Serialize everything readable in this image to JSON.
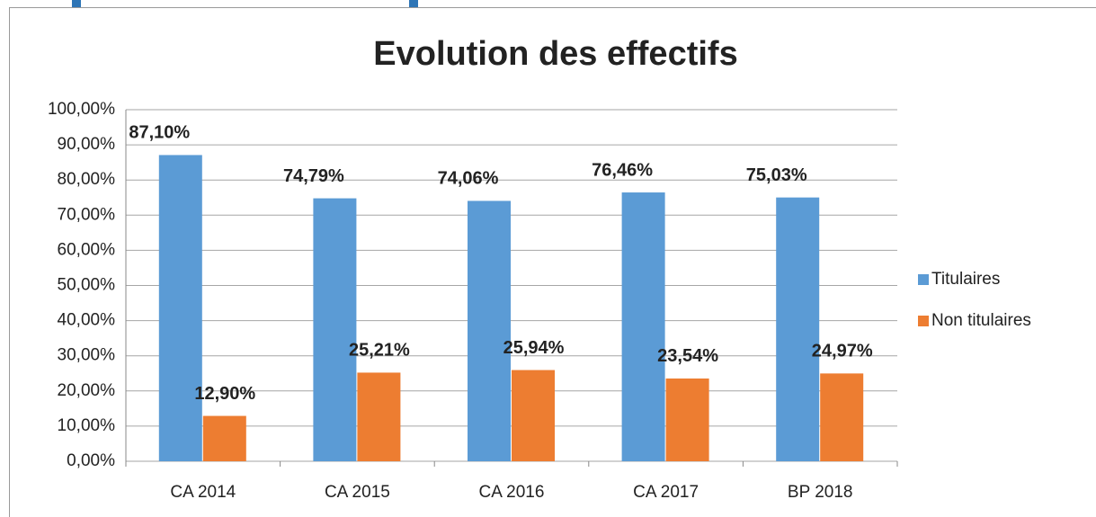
{
  "chart_data": {
    "type": "bar",
    "title": "Evolution des effectifs",
    "categories": [
      "CA 2014",
      "CA 2015",
      "CA 2016",
      "CA 2017",
      "BP 2018"
    ],
    "series": [
      {
        "name": "Titulaires",
        "color": "#5b9bd5",
        "label_color": "#2e75b6",
        "values": [
          87.1,
          74.79,
          74.06,
          76.46,
          75.03
        ],
        "value_labels": [
          "87,10%",
          "74,79%",
          "74,06%",
          "76,46%",
          "75,03%"
        ]
      },
      {
        "name": "Non titulaires",
        "color": "#ed7d31",
        "label_color": "#843c0c",
        "values": [
          12.9,
          25.21,
          25.94,
          23.54,
          24.97
        ],
        "value_labels": [
          "12,90%",
          "25,21%",
          "25,94%",
          "23,54%",
          "24,97%"
        ]
      }
    ],
    "ylim": [
      0,
      100
    ],
    "yticks": [
      {
        "value": 0,
        "label": "0,00%"
      },
      {
        "value": 10,
        "label": "10,00%"
      },
      {
        "value": 20,
        "label": "20,00%"
      },
      {
        "value": 30,
        "label": "30,00%"
      },
      {
        "value": 40,
        "label": "40,00%"
      },
      {
        "value": 50,
        "label": "50,00%"
      },
      {
        "value": 60,
        "label": "60,00%"
      },
      {
        "value": 70,
        "label": "70,00%"
      },
      {
        "value": 80,
        "label": "80,00%"
      },
      {
        "value": 90,
        "label": "90,00%"
      },
      {
        "value": 100,
        "label": "100,00%"
      }
    ],
    "grid": true,
    "legend": "right"
  }
}
